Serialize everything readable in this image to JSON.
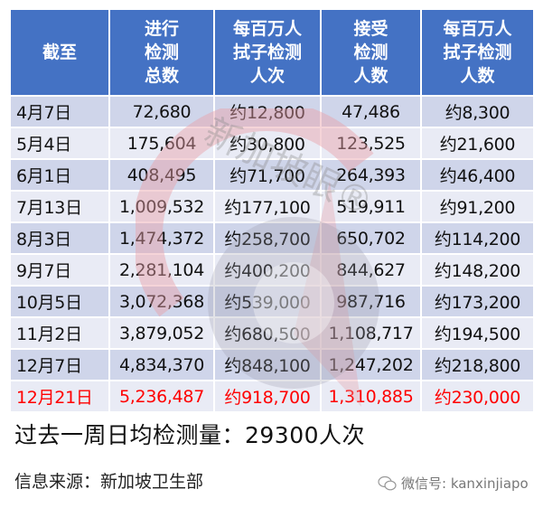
{
  "table": {
    "headers": [
      [
        "截至"
      ],
      [
        "进行",
        "检测",
        "总数"
      ],
      [
        "每百万人",
        "拭子检测",
        "人次"
      ],
      [
        "接受",
        "检测",
        "人数"
      ],
      [
        "每百万人",
        "拭子检测",
        "人数"
      ]
    ],
    "rows": [
      {
        "date": "4月7日",
        "total_tests": "72,680",
        "tests_per_million": "约12,800",
        "persons_tested": "47,486",
        "persons_per_million": "约8,300"
      },
      {
        "date": "5月4日",
        "total_tests": "175,604",
        "tests_per_million": "约30,800",
        "persons_tested": "123,525",
        "persons_per_million": "约21,600"
      },
      {
        "date": "6月1日",
        "total_tests": "408,495",
        "tests_per_million": "约71,700",
        "persons_tested": "264,393",
        "persons_per_million": "约46,400"
      },
      {
        "date": "7月13日",
        "total_tests": "1,009,532",
        "tests_per_million": "约177,100",
        "persons_tested": "519,911",
        "persons_per_million": "约91,200"
      },
      {
        "date": "8月3日",
        "total_tests": "1,474,372",
        "tests_per_million": "约258,700",
        "persons_tested": "650,702",
        "persons_per_million": "约114,200"
      },
      {
        "date": "9月7日",
        "total_tests": "2,281,104",
        "tests_per_million": "约400,200",
        "persons_tested": "844,627",
        "persons_per_million": "约148,200"
      },
      {
        "date": "10月5日",
        "total_tests": "3,072,368",
        "tests_per_million": "约539,000",
        "persons_tested": "987,716",
        "persons_per_million": "约173,200"
      },
      {
        "date": "11月2日",
        "total_tests": "3,879,052",
        "tests_per_million": "约680,500",
        "persons_tested": "1,108,717",
        "persons_per_million": "约194,500"
      },
      {
        "date": "12月7日",
        "total_tests": "4,834,370",
        "tests_per_million": "约848,100",
        "persons_tested": "1,247,202",
        "persons_per_million": "约218,800"
      },
      {
        "date": "12月21日",
        "total_tests": "5,236,487",
        "tests_per_million": "约918,700",
        "persons_tested": "1,310,885",
        "persons_per_million": "约230,000"
      }
    ],
    "highlight_row_index": 9,
    "colors": {
      "header_bg": "#4472c4",
      "row_odd": "#cfd5ea",
      "row_even": "#e9ebf5",
      "highlight_text": "#ff0000"
    }
  },
  "watermark": {
    "text": "新加坡眼®"
  },
  "summary": {
    "text": "过去一周日均检测量：29300人次"
  },
  "source": {
    "text": "信息来源：新加坡卫生部"
  },
  "wechat": {
    "icon": "wechat-icon",
    "text": "微信号: kanxinjiapo"
  }
}
